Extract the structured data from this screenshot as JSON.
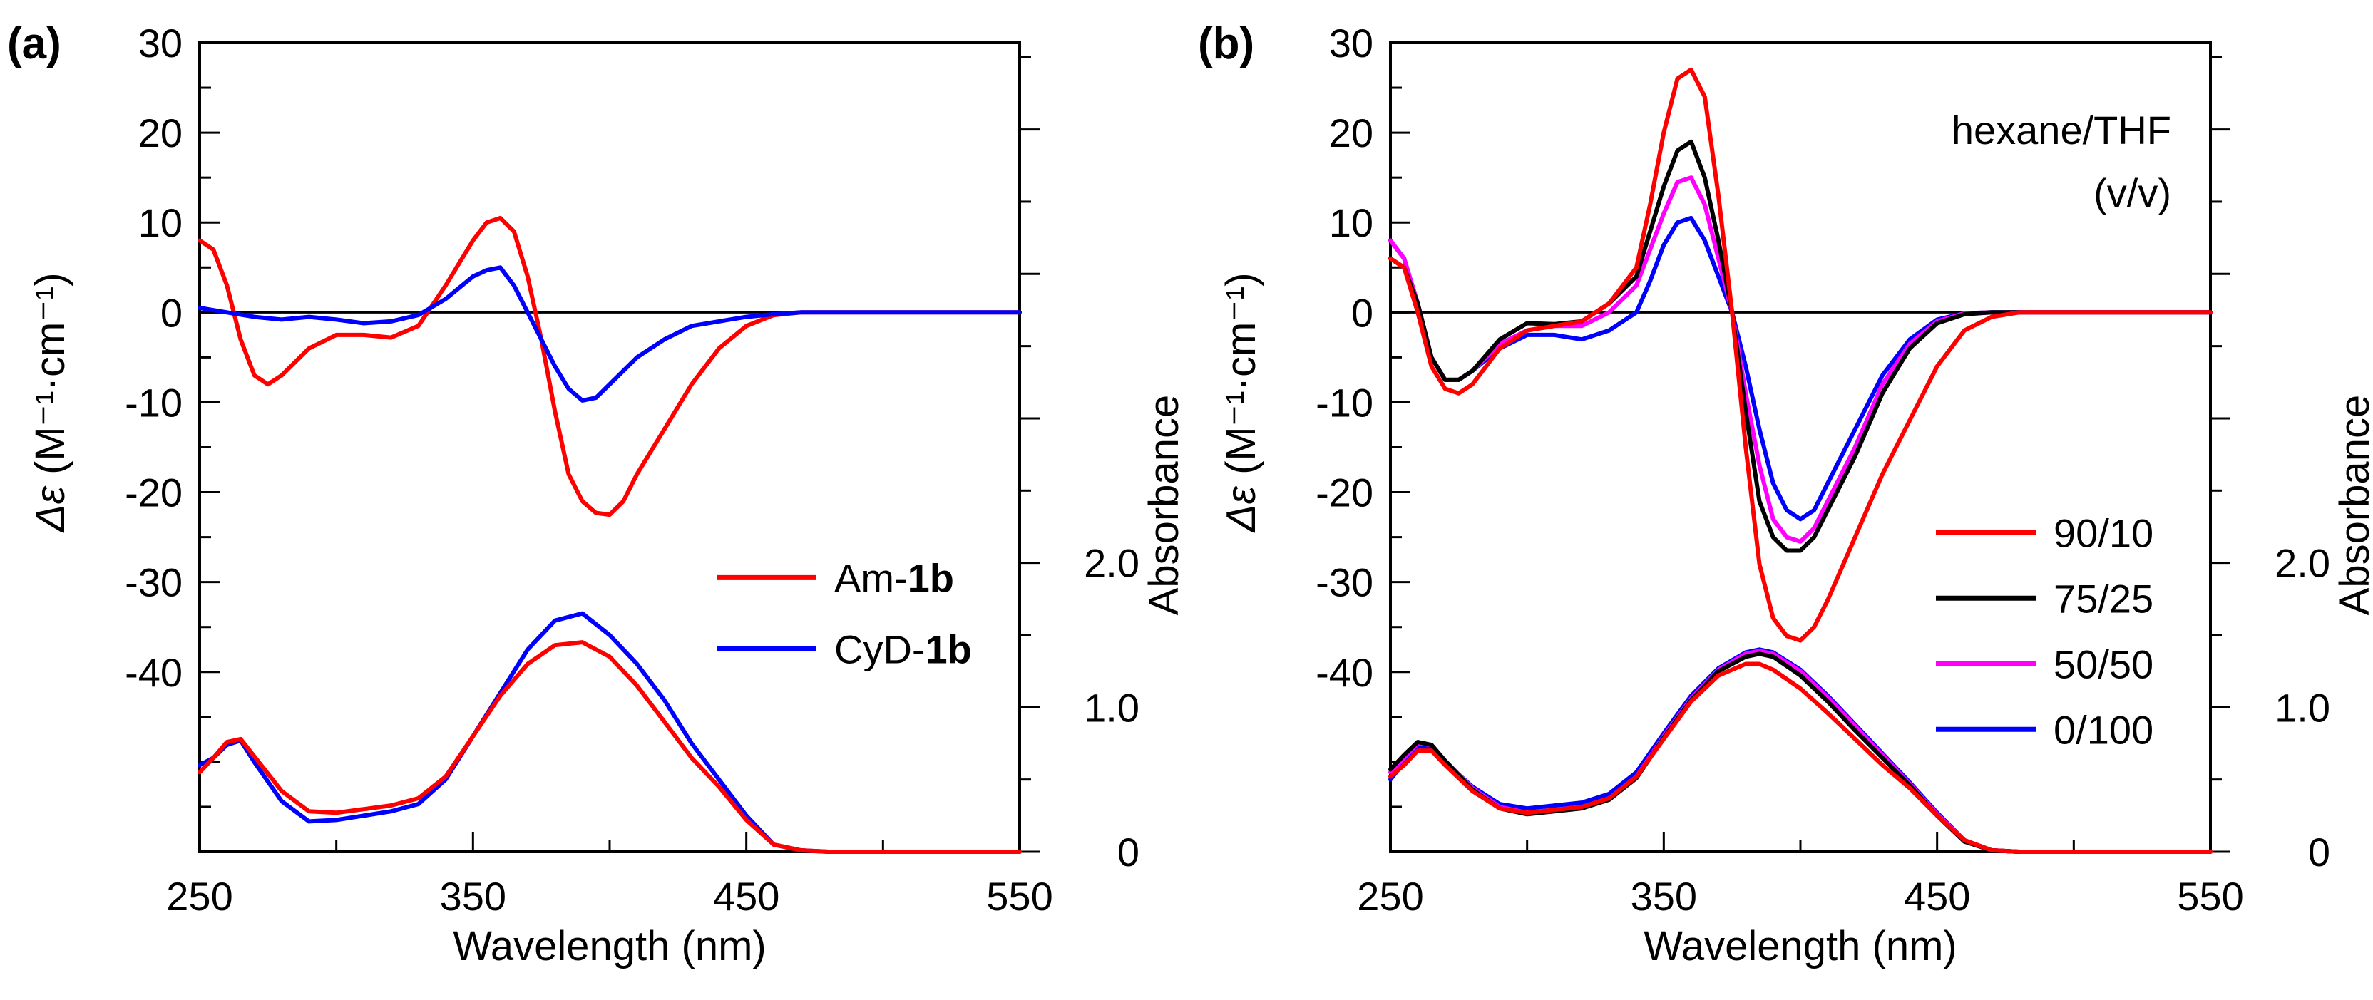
{
  "chart_data": [
    {
      "type": "line",
      "panel_label": "(a)",
      "xlabel": "Wavelength (nm)",
      "ylabel_symbol": "Δε",
      "ylabel_units": "(M⁻¹·cm⁻¹)",
      "ylabel_right": "Absorbance",
      "xlim": [
        250,
        550
      ],
      "ylim": [
        -60,
        30
      ],
      "y_ticks": [
        30,
        20,
        10,
        0,
        -10,
        -20,
        -30,
        -40
      ],
      "y_tick_labels": [
        "30",
        "20",
        "10",
        "0",
        "-10",
        "-20",
        "-30",
        "-40"
      ],
      "x_ticks": [
        250,
        350,
        450,
        550
      ],
      "x_tick_labels": [
        "250",
        "350",
        "450",
        "550"
      ],
      "abs_ylim": [
        0,
        5.6
      ],
      "abs_ticks": [
        0,
        1,
        2
      ],
      "abs_tick_labels": [
        "0",
        "1.0",
        "2.0"
      ],
      "legend": {
        "position": "lower-right",
        "entries": [
          {
            "prefix": "Am-",
            "bold": "1b",
            "color": "#ff0000"
          },
          {
            "prefix": "CyD-",
            "bold": "1b",
            "color": "#0000ff"
          }
        ]
      },
      "series": [
        {
          "name": "Am-1b CD",
          "kind": "cd",
          "color": "#ff0000",
          "x": [
            250,
            255,
            260,
            265,
            270,
            275,
            280,
            290,
            300,
            310,
            320,
            330,
            340,
            350,
            355,
            360,
            365,
            370,
            375,
            380,
            385,
            390,
            395,
            400,
            405,
            410,
            420,
            430,
            440,
            450,
            460,
            470,
            480,
            500,
            520,
            550
          ],
          "values": [
            8,
            7,
            3,
            -3,
            -7,
            -8,
            -7,
            -4,
            -2.5,
            -2.5,
            -2.8,
            -1.5,
            3,
            8,
            10,
            10.5,
            9,
            4,
            -3,
            -11,
            -18,
            -21,
            -22.3,
            -22.5,
            -21,
            -18,
            -13,
            -8,
            -4,
            -1.5,
            -0.3,
            0,
            0,
            0,
            0,
            0
          ]
        },
        {
          "name": "CyD-1b CD",
          "kind": "cd",
          "color": "#0000ff",
          "x": [
            250,
            260,
            270,
            280,
            290,
            300,
            310,
            320,
            330,
            340,
            350,
            355,
            360,
            365,
            370,
            375,
            380,
            385,
            390,
            395,
            400,
            410,
            420,
            430,
            440,
            450,
            460,
            470,
            500,
            550
          ],
          "values": [
            0.5,
            0,
            -0.5,
            -0.8,
            -0.5,
            -0.8,
            -1.2,
            -1,
            -0.3,
            1.5,
            4,
            4.7,
            5,
            3,
            0,
            -3,
            -6,
            -8.5,
            -9.8,
            -9.5,
            -8,
            -5,
            -3,
            -1.5,
            -1,
            -0.5,
            -0.2,
            0,
            0,
            0
          ]
        },
        {
          "name": "CyD-1b absorbance",
          "kind": "abs",
          "color": "#0000ff",
          "x": [
            250,
            255,
            260,
            265,
            270,
            280,
            290,
            300,
            320,
            330,
            340,
            350,
            360,
            370,
            380,
            390,
            400,
            410,
            420,
            430,
            440,
            450,
            460,
            470,
            480,
            500,
            550
          ],
          "values": [
            0.6,
            0.65,
            0.74,
            0.77,
            0.62,
            0.35,
            0.21,
            0.22,
            0.28,
            0.33,
            0.5,
            0.8,
            1.1,
            1.4,
            1.6,
            1.65,
            1.5,
            1.3,
            1.05,
            0.75,
            0.5,
            0.25,
            0.05,
            0.01,
            0,
            0,
            0
          ]
        },
        {
          "name": "Am-1b absorbance",
          "kind": "abs",
          "color": "#ff0000",
          "x": [
            250,
            255,
            260,
            265,
            270,
            280,
            290,
            300,
            320,
            330,
            340,
            350,
            360,
            370,
            380,
            390,
            400,
            410,
            420,
            430,
            440,
            450,
            460,
            470,
            480,
            500,
            550
          ],
          "values": [
            0.55,
            0.65,
            0.76,
            0.78,
            0.66,
            0.42,
            0.28,
            0.27,
            0.32,
            0.37,
            0.52,
            0.8,
            1.08,
            1.3,
            1.43,
            1.45,
            1.35,
            1.15,
            0.9,
            0.65,
            0.45,
            0.22,
            0.05,
            0.01,
            0,
            0,
            0
          ]
        }
      ]
    },
    {
      "type": "line",
      "panel_label": "(b)",
      "xlabel": "Wavelength (nm)",
      "ylabel_symbol": "Δε",
      "ylabel_units": "(M⁻¹·cm⁻¹)",
      "ylabel_right": "Absorbance",
      "annotation": [
        "hexane/THF",
        "(v/v)"
      ],
      "xlim": [
        250,
        550
      ],
      "ylim": [
        -60,
        30
      ],
      "y_ticks": [
        30,
        20,
        10,
        0,
        -10,
        -20,
        -30,
        -40
      ],
      "y_tick_labels": [
        "30",
        "20",
        "10",
        "0",
        "-10",
        "-20",
        "-30",
        "-40"
      ],
      "x_ticks": [
        250,
        350,
        450,
        550
      ],
      "x_tick_labels": [
        "250",
        "350",
        "450",
        "550"
      ],
      "abs_ylim": [
        0,
        5.6
      ],
      "abs_ticks": [
        0,
        1,
        2
      ],
      "abs_tick_labels": [
        "0",
        "1.0",
        "2.0"
      ],
      "legend": {
        "position": "lower-right",
        "entries": [
          {
            "prefix": "90/10",
            "bold": "",
            "color": "#ff0000"
          },
          {
            "prefix": "75/25",
            "bold": "",
            "color": "#000000"
          },
          {
            "prefix": "50/50",
            "bold": "",
            "color": "#ff00ff"
          },
          {
            "prefix": "0/100",
            "bold": "",
            "color": "#0000ff"
          }
        ]
      },
      "series": [
        {
          "name": "0/100 CD",
          "kind": "cd",
          "color": "#0000ff",
          "x": [
            250,
            255,
            260,
            265,
            270,
            275,
            280,
            290,
            300,
            310,
            320,
            330,
            340,
            345,
            350,
            355,
            360,
            365,
            370,
            375,
            380,
            385,
            390,
            395,
            400,
            405,
            410,
            420,
            430,
            440,
            450,
            460,
            470,
            550
          ],
          "values": [
            8,
            6,
            1,
            -5,
            -7.5,
            -7.5,
            -6.5,
            -4,
            -2.5,
            -2.5,
            -3,
            -2,
            0,
            3.5,
            7.5,
            10,
            10.5,
            8,
            4,
            0,
            -6,
            -13,
            -19,
            -22,
            -23,
            -22,
            -19,
            -13,
            -7,
            -3,
            -0.8,
            -0.1,
            0,
            0
          ]
        },
        {
          "name": "50/50 CD",
          "kind": "cd",
          "color": "#ff00ff",
          "x": [
            250,
            255,
            260,
            265,
            270,
            275,
            280,
            290,
            300,
            310,
            320,
            330,
            340,
            345,
            350,
            355,
            360,
            365,
            370,
            375,
            380,
            385,
            390,
            395,
            400,
            405,
            410,
            420,
            430,
            440,
            450,
            460,
            470,
            550
          ],
          "values": [
            8,
            6,
            1,
            -5,
            -7.5,
            -7.5,
            -6.5,
            -3.5,
            -2,
            -1.5,
            -1.5,
            0,
            3,
            7,
            11,
            14.5,
            15,
            12,
            6,
            0,
            -9,
            -17,
            -23,
            -25,
            -25.5,
            -24,
            -21,
            -15,
            -8,
            -3.5,
            -1,
            -0.1,
            0,
            0
          ]
        },
        {
          "name": "75/25 CD",
          "kind": "cd",
          "color": "#000000",
          "x": [
            250,
            255,
            260,
            265,
            270,
            275,
            280,
            290,
            300,
            310,
            320,
            330,
            340,
            345,
            350,
            355,
            360,
            365,
            370,
            375,
            380,
            385,
            390,
            395,
            400,
            405,
            410,
            420,
            430,
            440,
            450,
            460,
            470,
            550
          ],
          "values": [
            6,
            5,
            1,
            -5,
            -7.5,
            -7.5,
            -6.5,
            -3,
            -1.2,
            -1.3,
            -1,
            1,
            4,
            9,
            14,
            18,
            19,
            15,
            8,
            0,
            -11,
            -21,
            -25,
            -26.5,
            -26.5,
            -25,
            -22,
            -16,
            -9,
            -4,
            -1.2,
            -0.2,
            0,
            0
          ]
        },
        {
          "name": "90/10 CD",
          "kind": "cd",
          "color": "#ff0000",
          "x": [
            250,
            255,
            260,
            265,
            270,
            275,
            280,
            290,
            300,
            310,
            320,
            330,
            340,
            345,
            350,
            355,
            360,
            365,
            370,
            375,
            380,
            385,
            390,
            395,
            400,
            405,
            410,
            420,
            430,
            440,
            450,
            460,
            470,
            480,
            550
          ],
          "values": [
            6,
            5,
            0,
            -6,
            -8.5,
            -9,
            -8,
            -4,
            -2,
            -1.5,
            -1,
            1,
            5,
            12,
            20,
            26,
            27,
            24,
            13,
            0,
            -15,
            -28,
            -34,
            -36,
            -36.5,
            -35,
            -32,
            -25,
            -18,
            -12,
            -6,
            -2,
            -0.5,
            0,
            0
          ]
        },
        {
          "name": "0/100 absorbance",
          "kind": "abs",
          "color": "#0000ff",
          "x": [
            250,
            255,
            260,
            265,
            270,
            280,
            290,
            300,
            320,
            330,
            340,
            350,
            360,
            370,
            380,
            385,
            390,
            400,
            410,
            420,
            430,
            440,
            450,
            460,
            470,
            480,
            500,
            550
          ],
          "values": [
            0.5,
            0.62,
            0.72,
            0.72,
            0.62,
            0.45,
            0.33,
            0.3,
            0.34,
            0.4,
            0.55,
            0.82,
            1.08,
            1.27,
            1.38,
            1.4,
            1.38,
            1.26,
            1.08,
            0.88,
            0.68,
            0.48,
            0.27,
            0.08,
            0.01,
            0,
            0,
            0
          ]
        },
        {
          "name": "50/50 absorbance",
          "kind": "abs",
          "color": "#ff00ff",
          "x": [
            250,
            255,
            260,
            265,
            270,
            280,
            290,
            300,
            320,
            330,
            340,
            350,
            360,
            370,
            380,
            385,
            390,
            400,
            410,
            420,
            430,
            440,
            450,
            460,
            470,
            480,
            500,
            550
          ],
          "values": [
            0.55,
            0.65,
            0.75,
            0.74,
            0.63,
            0.44,
            0.31,
            0.27,
            0.31,
            0.37,
            0.52,
            0.8,
            1.06,
            1.26,
            1.37,
            1.39,
            1.37,
            1.25,
            1.07,
            0.87,
            0.67,
            0.47,
            0.26,
            0.08,
            0.01,
            0,
            0,
            0
          ]
        },
        {
          "name": "75/25 absorbance",
          "kind": "abs",
          "color": "#000000",
          "x": [
            250,
            255,
            260,
            265,
            270,
            280,
            290,
            300,
            320,
            330,
            340,
            350,
            360,
            370,
            380,
            385,
            390,
            400,
            410,
            420,
            430,
            440,
            450,
            460,
            470,
            480,
            500,
            550
          ],
          "values": [
            0.57,
            0.67,
            0.76,
            0.74,
            0.63,
            0.43,
            0.3,
            0.26,
            0.3,
            0.36,
            0.51,
            0.79,
            1.05,
            1.25,
            1.35,
            1.37,
            1.35,
            1.22,
            1.04,
            0.84,
            0.65,
            0.46,
            0.25,
            0.07,
            0.01,
            0,
            0,
            0
          ]
        },
        {
          "name": "90/10 absorbance",
          "kind": "abs",
          "color": "#ff0000",
          "x": [
            250,
            255,
            260,
            265,
            270,
            280,
            290,
            300,
            320,
            330,
            340,
            350,
            360,
            370,
            380,
            385,
            390,
            400,
            410,
            420,
            430,
            440,
            450,
            460,
            470,
            480,
            500,
            550
          ],
          "values": [
            0.52,
            0.6,
            0.7,
            0.7,
            0.6,
            0.42,
            0.3,
            0.27,
            0.31,
            0.37,
            0.52,
            0.78,
            1.04,
            1.22,
            1.3,
            1.3,
            1.26,
            1.13,
            0.96,
            0.78,
            0.6,
            0.44,
            0.25,
            0.08,
            0.01,
            0,
            0,
            0
          ]
        }
      ]
    }
  ]
}
